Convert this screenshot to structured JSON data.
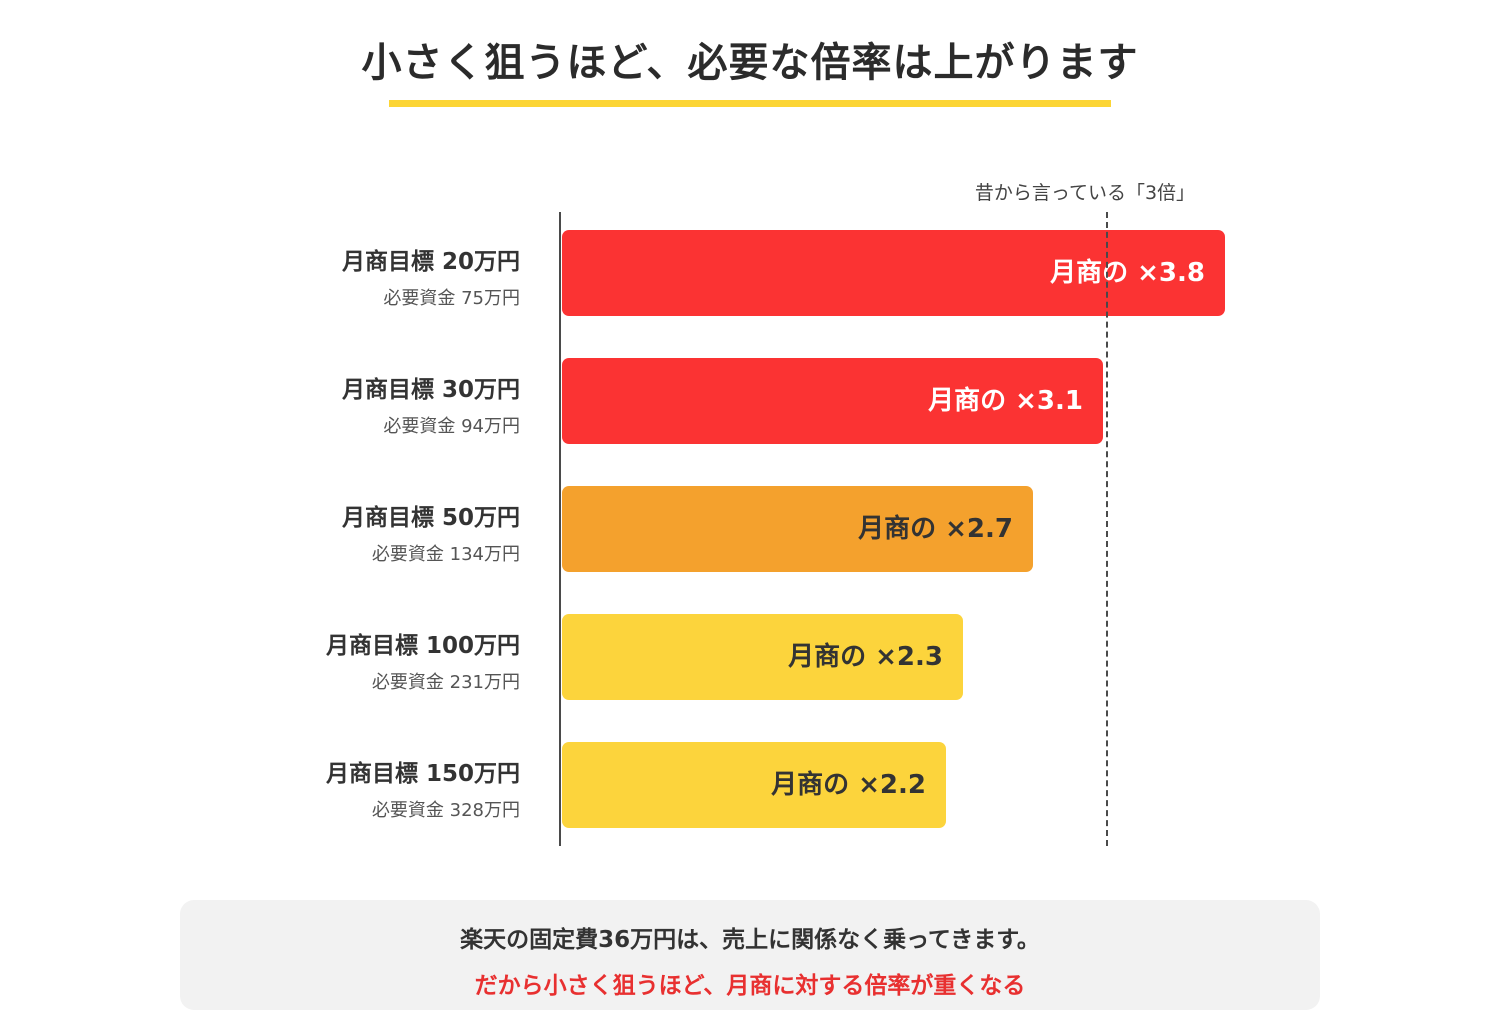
{
  "title": "小さく狙うほど、必要な倍率は上がります",
  "reference": {
    "label": "昔から言っている「3倍」",
    "value": 3
  },
  "chart_data": {
    "type": "bar",
    "orientation": "horizontal",
    "xlim": [
      0,
      3.8
    ],
    "categories": [
      {
        "target": "月商目標  20万円",
        "capital": "必要資金  75万円"
      },
      {
        "target": "月商目標  30万円",
        "capital": "必要資金  94万円"
      },
      {
        "target": "月商目標  50万円",
        "capital": "必要資金  134万円"
      },
      {
        "target": "月商目標  100万円",
        "capital": "必要資金  231万円"
      },
      {
        "target": "月商目標  150万円",
        "capital": "必要資金  328万円"
      }
    ],
    "values": [
      3.8,
      3.1,
      2.7,
      2.3,
      2.2
    ],
    "data_labels": [
      "月商の  ×3.8",
      "月商の  ×3.1",
      "月商の  ×2.7",
      "月商の  ×2.3",
      "月商の  ×2.2"
    ],
    "bar_colors": [
      "#fb3333",
      "#fb3333",
      "#f4a12d",
      "#fcd43c",
      "#fcd43c"
    ],
    "label_colors": [
      "#ffffff",
      "#ffffff",
      "#333333",
      "#333333",
      "#333333"
    ]
  },
  "note": {
    "line1": "楽天の固定費36万円は、売上に関係なく乗ってきます。",
    "line2": "だから小さく狙うほど、月商に対する倍率が重くなる"
  }
}
